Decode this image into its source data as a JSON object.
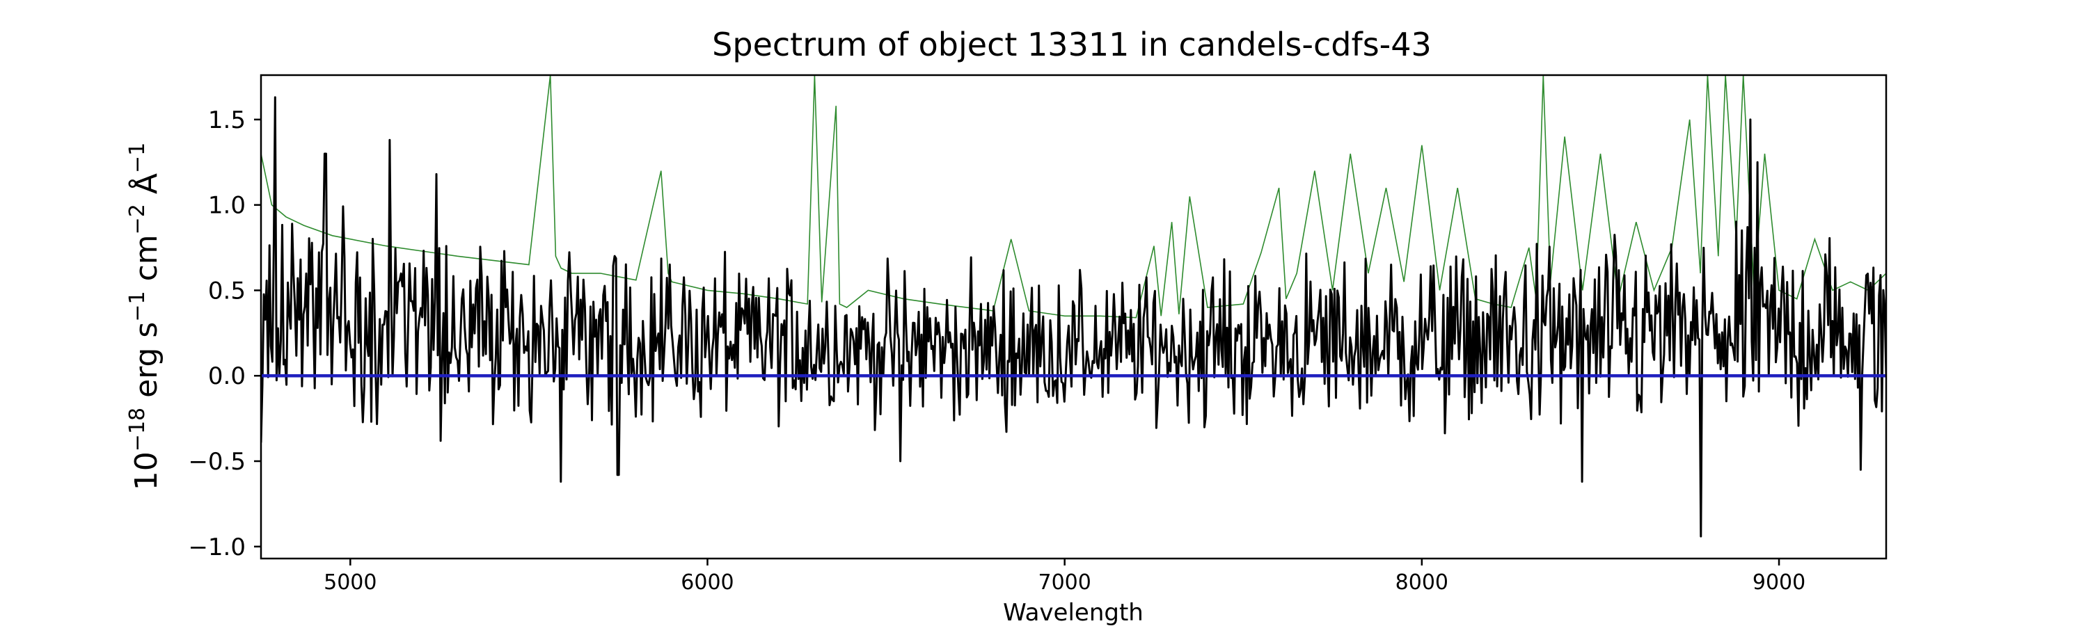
{
  "chart_data": {
    "type": "line",
    "title": "Spectrum of object 13311 in candels-cdfs-43",
    "xlabel": "Wavelength",
    "ylabel": {
      "base": "10",
      "exp": "−18",
      "text1": " erg s",
      "exp1": "−1",
      "text2": " cm",
      "exp2": "−2",
      "text3": " Å",
      "exp3": "−1"
    },
    "xlim": [
      4750,
      9300
    ],
    "ylim": [
      -1.07,
      1.76
    ],
    "xticks": [
      5000,
      6000,
      7000,
      8000,
      9000
    ],
    "xtick_labels": [
      "5000",
      "6000",
      "7000",
      "8000",
      "9000"
    ],
    "yticks": [
      -1.0,
      -0.5,
      0.0,
      0.5,
      1.0,
      1.5
    ],
    "ytick_labels": [
      "−1.0",
      "−0.5",
      "0.0",
      "0.5",
      "1.0",
      "1.5"
    ],
    "grid": false,
    "series": [
      {
        "role": "contamination",
        "color": "#2e8b2e",
        "x": [
          4750,
          4780,
          4820,
          4870,
          4950,
          5100,
          5300,
          5500,
          5560,
          5575,
          5590,
          5620,
          5700,
          5800,
          5870,
          5890,
          5900,
          5920,
          6000,
          6100,
          6200,
          6280,
          6300,
          6320,
          6360,
          6370,
          6390,
          6450,
          6550,
          6650,
          6800,
          6850,
          6900,
          7000,
          7100,
          7200,
          7250,
          7270,
          7300,
          7320,
          7350,
          7400,
          7500,
          7550,
          7600,
          7620,
          7650,
          7700,
          7750,
          7800,
          7850,
          7900,
          7950,
          8000,
          8050,
          8100,
          8150,
          8200,
          8250,
          8300,
          8320,
          8340,
          8360,
          8400,
          8450,
          8500,
          8550,
          8600,
          8650,
          8700,
          8750,
          8780,
          8800,
          8830,
          8850,
          8880,
          8900,
          8930,
          8960,
          9000,
          9050,
          9100,
          9150,
          9200,
          9250,
          9300
        ],
        "y": [
          1.3,
          1.0,
          0.93,
          0.88,
          0.82,
          0.76,
          0.7,
          0.65,
          1.76,
          0.7,
          0.63,
          0.6,
          0.6,
          0.56,
          1.2,
          0.6,
          0.55,
          0.54,
          0.5,
          0.48,
          0.45,
          0.42,
          1.76,
          0.43,
          1.58,
          0.42,
          0.4,
          0.5,
          0.45,
          0.42,
          0.38,
          0.8,
          0.38,
          0.35,
          0.35,
          0.34,
          0.76,
          0.35,
          0.9,
          0.36,
          1.05,
          0.4,
          0.42,
          0.72,
          1.1,
          0.45,
          0.6,
          1.2,
          0.5,
          1.3,
          0.6,
          1.1,
          0.55,
          1.35,
          0.5,
          1.1,
          0.45,
          0.42,
          0.4,
          0.75,
          0.45,
          1.76,
          0.55,
          1.4,
          0.5,
          1.3,
          0.45,
          0.9,
          0.5,
          0.75,
          1.5,
          0.6,
          1.76,
          0.7,
          1.76,
          0.8,
          1.76,
          0.5,
          1.3,
          0.5,
          0.45,
          0.8,
          0.5,
          0.55,
          0.5,
          0.6
        ]
      },
      {
        "role": "flux",
        "color": "#000000",
        "x_start": 4750,
        "x_end": 9300,
        "points": 1150,
        "envelope": [
          {
            "x": 4750,
            "base": 0.35,
            "amp": 0.55
          },
          {
            "x": 5000,
            "base": 0.3,
            "amp": 0.5
          },
          {
            "x": 5500,
            "base": 0.25,
            "amp": 0.45
          },
          {
            "x": 6000,
            "base": 0.2,
            "amp": 0.42
          },
          {
            "x": 6500,
            "base": 0.18,
            "amp": 0.38
          },
          {
            "x": 7000,
            "base": 0.15,
            "amp": 0.35
          },
          {
            "x": 7500,
            "base": 0.18,
            "amp": 0.4
          },
          {
            "x": 8000,
            "base": 0.2,
            "amp": 0.45
          },
          {
            "x": 8500,
            "base": 0.22,
            "amp": 0.48
          },
          {
            "x": 9000,
            "base": 0.25,
            "amp": 0.5
          },
          {
            "x": 9300,
            "base": 0.25,
            "amp": 0.5
          }
        ],
        "peaks": [
          {
            "x": 4790,
            "y": 1.63
          },
          {
            "x": 4930,
            "y": 1.3
          },
          {
            "x": 5110,
            "y": 1.38
          },
          {
            "x": 5240,
            "y": 1.18
          },
          {
            "x": 8780,
            "y": -0.94
          },
          {
            "x": 8920,
            "y": 1.5
          },
          {
            "x": 8940,
            "y": 1.25
          },
          {
            "x": 5590,
            "y": -0.62
          },
          {
            "x": 5750,
            "y": -0.58
          },
          {
            "x": 6540,
            "y": -0.5
          },
          {
            "x": 8450,
            "y": -0.62
          },
          {
            "x": 9230,
            "y": -0.55
          }
        ]
      },
      {
        "role": "zero",
        "color": "#1f1fbf",
        "x": [
          4750,
          9300
        ],
        "y": [
          0.0,
          0.0
        ]
      }
    ]
  }
}
